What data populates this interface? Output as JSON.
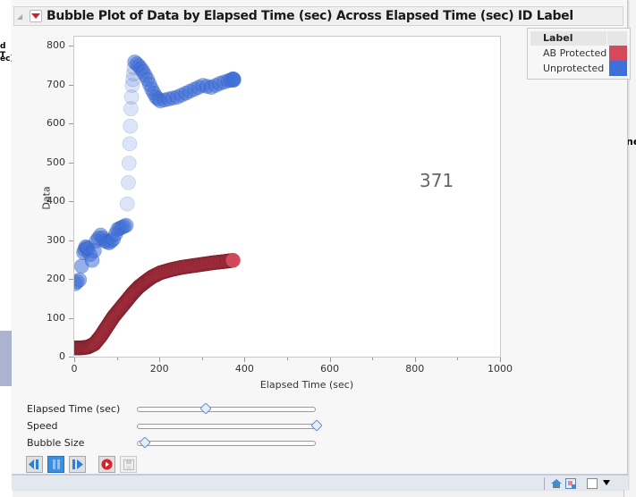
{
  "window": {
    "title": "Bubble Plot of Data by Elapsed Time (sec) Across Elapsed Time (sec) ID Label"
  },
  "background": {
    "left_text_1": "d T",
    "left_text_2": "ec)",
    "right_text": "ne"
  },
  "plot": {
    "frame_label": "371",
    "x_axis_title": "Elapsed Time (sec)",
    "y_axis_title": "Data",
    "x_ticks": [
      "0",
      "200",
      "400",
      "600",
      "800",
      "1000"
    ],
    "y_ticks": [
      "0",
      "100",
      "200",
      "300",
      "400",
      "500",
      "600",
      "700",
      "800"
    ]
  },
  "legend": {
    "title": "Label",
    "items": [
      {
        "label": "AB Protected",
        "color": "#d44a5a"
      },
      {
        "label": "Unprotected",
        "color": "#3f6fd8"
      }
    ]
  },
  "controls": {
    "sliders": [
      {
        "label": "Elapsed Time (sec)",
        "position_pct": 38
      },
      {
        "label": "Speed",
        "position_pct": 100
      },
      {
        "label": "Bubble Size",
        "position_pct": 4
      }
    ],
    "buttons": [
      {
        "name": "step-back",
        "state": "normal"
      },
      {
        "name": "pause",
        "state": "active"
      },
      {
        "name": "step-forward",
        "state": "normal"
      },
      {
        "name": "record",
        "state": "normal"
      },
      {
        "name": "save",
        "state": "disabled"
      }
    ]
  },
  "chart_data": {
    "type": "scatter",
    "subtype": "bubble-animation-trail",
    "title": "Bubble Plot of Data by Elapsed Time (sec) Across Elapsed Time (sec) ID Label",
    "xlabel": "Elapsed Time (sec)",
    "ylabel": "Data",
    "xlim": [
      0,
      1000
    ],
    "ylim": [
      0,
      800
    ],
    "x_ticks": [
      0,
      200,
      400,
      600,
      800,
      1000
    ],
    "y_ticks": [
      0,
      100,
      200,
      300,
      400,
      500,
      600,
      700,
      800
    ],
    "current_frame": 371,
    "legend_title": "Label",
    "legend_position": "right",
    "grid": false,
    "series": [
      {
        "name": "AB Protected",
        "color": "#d44a5a",
        "x": [
          0,
          15,
          30,
          45,
          60,
          75,
          90,
          105,
          120,
          135,
          150,
          165,
          180,
          200,
          225,
          250,
          275,
          300,
          325,
          350,
          371
        ],
        "y": [
          25,
          25,
          27,
          35,
          55,
          80,
          105,
          125,
          145,
          165,
          182,
          195,
          207,
          218,
          226,
          232,
          236,
          240,
          244,
          247,
          250
        ]
      },
      {
        "name": "Unprotected",
        "color": "#3f6fd8",
        "x": [
          0,
          10,
          20,
          25,
          30,
          40,
          50,
          60,
          70,
          80,
          90,
          100,
          110,
          120,
          125,
          128,
          131,
          134,
          137,
          140,
          150,
          160,
          170,
          180,
          190,
          200,
          220,
          240,
          260,
          280,
          300,
          320,
          340,
          360,
          371
        ],
        "y": [
          190,
          200,
          270,
          285,
          280,
          250,
          300,
          315,
          300,
          295,
          305,
          330,
          335,
          340,
          450,
          550,
          640,
          700,
          730,
          760,
          750,
          735,
          715,
          690,
          670,
          660,
          665,
          670,
          680,
          690,
          700,
          695,
          705,
          712,
          715
        ]
      }
    ]
  }
}
